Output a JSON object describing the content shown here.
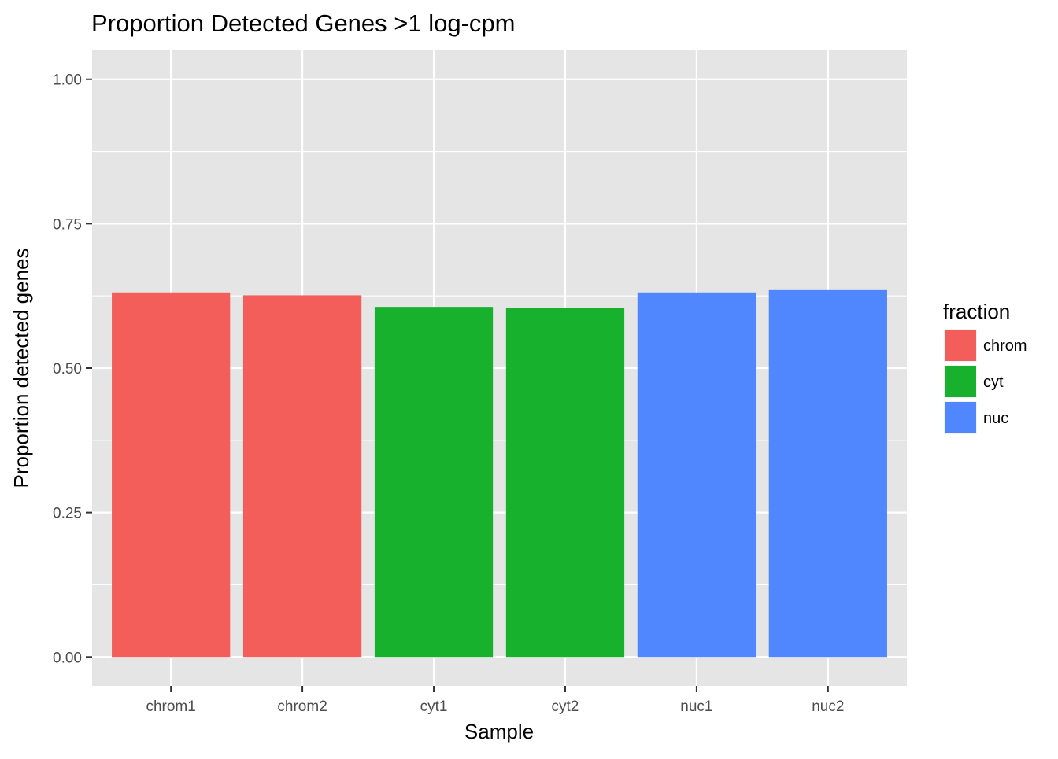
{
  "chart_data": {
    "type": "bar",
    "title": "Proportion Detected Genes >1 log-cpm",
    "xlabel": "Sample",
    "ylabel": "Proportion detected genes",
    "categories": [
      "chrom1",
      "chrom2",
      "cyt1",
      "cyt2",
      "nuc1",
      "nuc2"
    ],
    "values": [
      0.631,
      0.626,
      0.606,
      0.604,
      0.631,
      0.635
    ],
    "fill_group": [
      "chrom",
      "chrom",
      "cyt",
      "cyt",
      "nuc",
      "nuc"
    ],
    "ylim": [
      -0.05,
      1.05
    ],
    "yticks": [
      0,
      0.25,
      0.5,
      0.75,
      1.0
    ],
    "ytick_labels": [
      "0.00",
      "0.25",
      "0.50",
      "0.75",
      "1.00"
    ],
    "grid": true,
    "legend": {
      "title": "fraction",
      "position": "right",
      "entries": [
        {
          "label": "chrom",
          "color": "#F35E5A"
        },
        {
          "label": "cyt",
          "color": "#17B12E"
        },
        {
          "label": "nuc",
          "color": "#5086FE"
        }
      ]
    },
    "panel_background": "#E5E5E5",
    "grid_color": "#FFFFFF"
  }
}
